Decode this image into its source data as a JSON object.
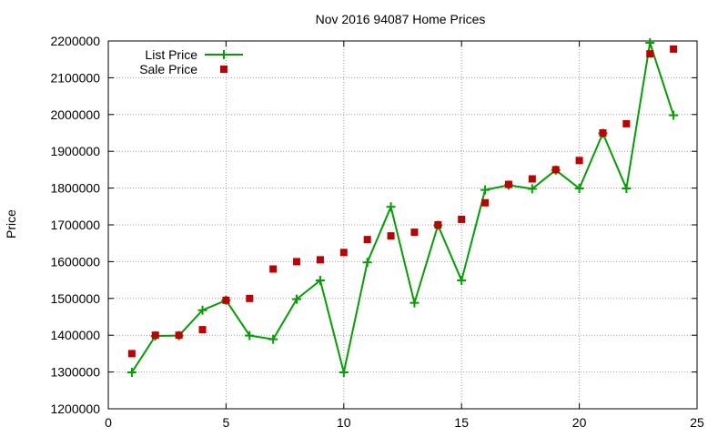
{
  "chart_data": {
    "type": "line",
    "title": "Nov 2016 94087 Home Prices",
    "xlabel": "",
    "ylabel": "Price",
    "xlim": [
      0,
      25
    ],
    "ylim": [
      1200000,
      2200000
    ],
    "x_ticks": [
      "0",
      "5",
      "10",
      "15",
      "20",
      "25"
    ],
    "y_ticks": [
      "1200000",
      "1300000",
      "1400000",
      "1500000",
      "1600000",
      "1700000",
      "1800000",
      "1900000",
      "2000000",
      "2100000",
      "2200000"
    ],
    "grid": true,
    "legend_position": "top-left",
    "x": [
      1,
      2,
      3,
      4,
      5,
      6,
      7,
      8,
      9,
      10,
      11,
      12,
      13,
      14,
      15,
      16,
      17,
      18,
      19,
      20,
      21,
      22,
      23,
      24
    ],
    "series": [
      {
        "name": "List Price",
        "style": "linespoints",
        "marker": "plus",
        "color": "#00a000",
        "values": [
          1299000,
          1398000,
          1399000,
          1468000,
          1495000,
          1399000,
          1389000,
          1498000,
          1549000,
          1299000,
          1598000,
          1749000,
          1488000,
          1699000,
          1549000,
          1795000,
          1808000,
          1798000,
          1849000,
          1799000,
          1949000,
          1799000,
          2195000,
          1998000
        ]
      },
      {
        "name": "Sale Price",
        "style": "points",
        "marker": "square",
        "color": "#c00000",
        "values": [
          1350000,
          1400000,
          1400000,
          1415000,
          1495000,
          1500000,
          1580000,
          1600000,
          1605000,
          1625000,
          1660000,
          1670000,
          1680000,
          1700000,
          1715000,
          1760000,
          1810000,
          1825000,
          1850000,
          1875000,
          1950000,
          1975000,
          2165000,
          2178000
        ]
      }
    ]
  }
}
